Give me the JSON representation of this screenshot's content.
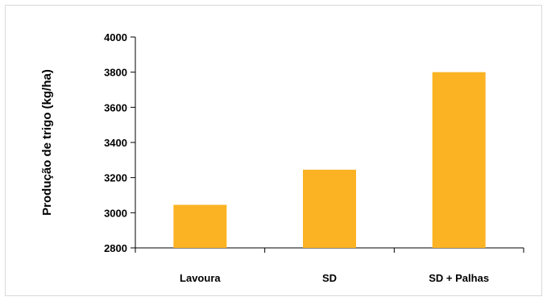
{
  "chart_data": {
    "type": "bar",
    "title": "",
    "xlabel": "",
    "ylabel": "Produção de trigo (kg/ha)",
    "categories": [
      "Lavoura",
      "SD",
      "SD + Palhas"
    ],
    "values": [
      3045,
      3245,
      3800
    ],
    "ylim": [
      2800,
      4000
    ],
    "yticks": [
      "2800",
      "3000",
      "3200",
      "3400",
      "3600",
      "3800",
      "4000"
    ],
    "ytick_values": [
      2800,
      3000,
      3200,
      3400,
      3600,
      3800,
      4000
    ],
    "grid": false,
    "legend": "none",
    "colors": {
      "bar": "#FBB323",
      "axis": "#000000"
    }
  }
}
